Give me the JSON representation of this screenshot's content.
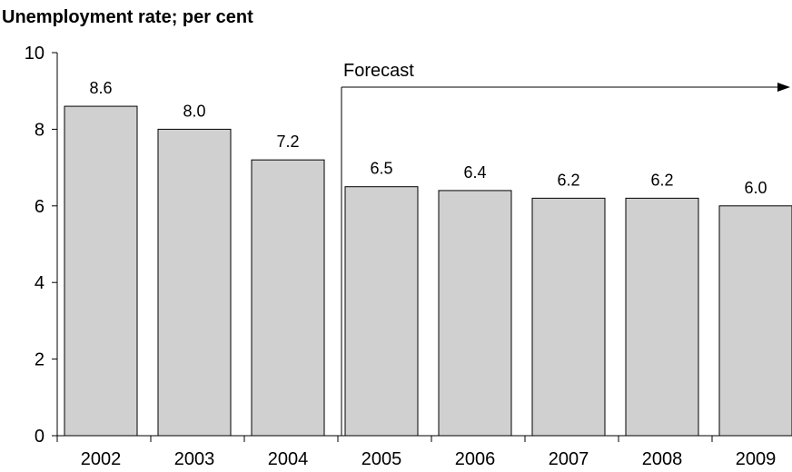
{
  "chart_data": {
    "type": "bar",
    "title": "Unemployment rate; per cent",
    "xlabel": "",
    "ylabel": "",
    "categories": [
      "2002",
      "2003",
      "2004",
      "2005",
      "2006",
      "2007",
      "2008",
      "2009"
    ],
    "values": [
      8.6,
      8.0,
      7.2,
      6.5,
      6.4,
      6.2,
      6.2,
      6.0
    ],
    "data_labels": [
      "8.6",
      "8.0",
      "7.2",
      "6.5",
      "6.4",
      "6.2",
      "6.2",
      "6.0"
    ],
    "ylim": [
      0,
      10
    ],
    "yticks": [
      "0",
      "2",
      "4",
      "6",
      "8",
      "10"
    ],
    "grid": false,
    "legend": "none",
    "bar_color": "#d0d0d0",
    "bar_edge_color": "#000000",
    "annotation": {
      "text": "Forecast",
      "start_category": "2005"
    }
  }
}
